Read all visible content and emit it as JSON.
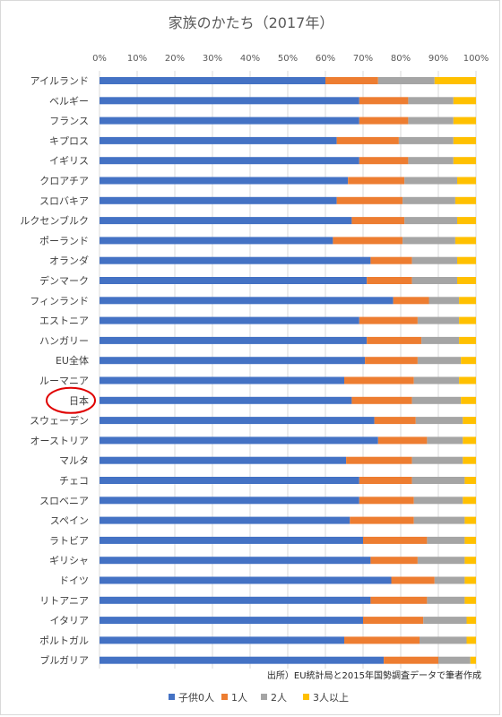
{
  "chart_data": {
    "type": "bar",
    "orientation": "horizontal",
    "stacked": true,
    "title": "家族のかたち（2017年）",
    "source_note": "出所）EU統計局と2015年国勢調査データで筆者作成",
    "xlim": [
      0,
      100
    ],
    "x_ticks": [
      "0%",
      "10%",
      "20%",
      "30%",
      "40%",
      "50%",
      "60%",
      "70%",
      "80%",
      "90%",
      "100%"
    ],
    "grid": true,
    "legend_position": "bottom",
    "highlight_category": "日本",
    "categories": [
      "アイルランド",
      "ベルギー",
      "フランス",
      "キプロス",
      "イギリス",
      "クロアチア",
      "スロバキア",
      "ルクセンブルク",
      "ポーランド",
      "オランダ",
      "デンマーク",
      "フィンランド",
      "エストニア",
      "ハンガリー",
      "EU全体",
      "ルーマニア",
      "日本",
      "スウェーデン",
      "オーストリア",
      "マルタ",
      "チェコ",
      "スロベニア",
      "スペイン",
      "ラトビア",
      "ギリシャ",
      "ドイツ",
      "リトアニア",
      "イタリア",
      "ポルトガル",
      "ブルガリア"
    ],
    "series": [
      {
        "name": "子供0人",
        "color": "#4472c4",
        "values": [
          60,
          69,
          69,
          63,
          69,
          66,
          63,
          67,
          62,
          72,
          71,
          78,
          69,
          71,
          70.5,
          65,
          67,
          73,
          74,
          65.5,
          69,
          69,
          66.5,
          70,
          72,
          77.5,
          72,
          70,
          65,
          75.5
        ]
      },
      {
        "name": "1人",
        "color": "#ed7d31",
        "values": [
          14,
          13,
          13,
          16.5,
          13,
          15,
          17.5,
          14,
          18.5,
          11,
          12,
          9.5,
          15.5,
          14.5,
          14,
          18.5,
          16,
          11,
          13,
          17.5,
          14,
          14.5,
          17,
          17,
          12.5,
          11.5,
          15,
          16,
          20,
          14.5
        ]
      },
      {
        "name": "2人",
        "color": "#a5a5a5",
        "values": [
          15,
          12,
          12,
          14.5,
          12,
          14,
          14,
          14,
          14,
          12,
          12,
          8,
          11,
          10,
          11.5,
          12,
          13,
          12.5,
          9.5,
          13.5,
          14,
          13,
          13.5,
          10,
          12.5,
          8,
          10,
          11.5,
          12.5,
          8.5
        ]
      },
      {
        "name": "3人以上",
        "color": "#ffc000",
        "values": [
          11,
          6,
          6,
          6,
          6,
          5,
          5.5,
          5,
          5.5,
          5,
          5,
          4.5,
          4.5,
          4.5,
          4,
          4.5,
          4,
          3.5,
          3.5,
          3.5,
          3,
          3.5,
          3,
          3,
          3,
          3,
          3,
          2.5,
          2.5,
          1.5
        ]
      }
    ]
  }
}
